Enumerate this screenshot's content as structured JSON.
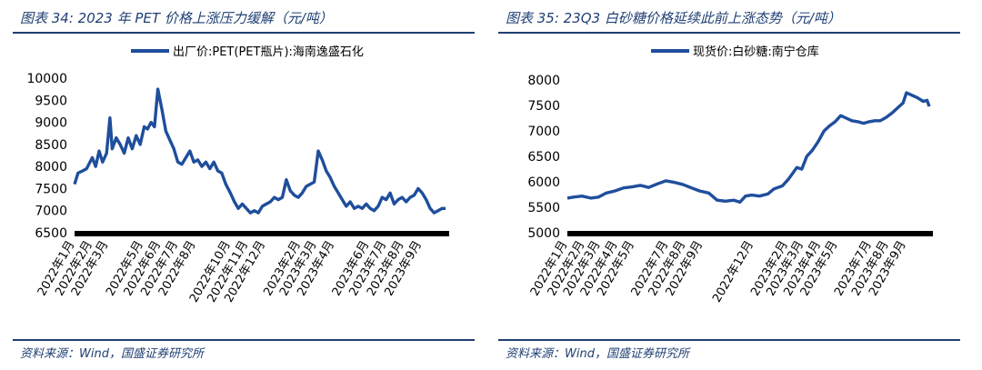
{
  "panels": [
    {
      "title": "图表 34:  2023 年 PET 价格上涨压力缓解（元/吨）",
      "source": "资料来源：Wind，国盛证券研究所",
      "chart_data": {
        "type": "line",
        "legend": "出厂价:PET(PET瓶片):海南逸盛石化",
        "legend_position": "top",
        "ylim": [
          6500,
          10000
        ],
        "yticks": [
          6500,
          7000,
          7500,
          8000,
          8500,
          9000,
          9500,
          10000
        ],
        "x_start": "2022-01-04",
        "x_end": "2023-10-16",
        "xticks": [
          {
            "date": "2022-01-04",
            "label": "2022年1月"
          },
          {
            "date": "2022-02-04",
            "label": "2022年2月"
          },
          {
            "date": "2022-03-04",
            "label": "2022年3月"
          },
          {
            "date": "2022-05-04",
            "label": "2022年5月"
          },
          {
            "date": "2022-06-04",
            "label": "2022年6月"
          },
          {
            "date": "2022-07-04",
            "label": "2022年7月"
          },
          {
            "date": "2022-08-04",
            "label": "2022年8月"
          },
          {
            "date": "2022-10-04",
            "label": "2022年10月"
          },
          {
            "date": "2022-11-04",
            "label": "2022年11月"
          },
          {
            "date": "2022-12-04",
            "label": "2022年12月"
          },
          {
            "date": "2023-02-04",
            "label": "2023年2月"
          },
          {
            "date": "2023-03-04",
            "label": "2023年3月"
          },
          {
            "date": "2023-04-04",
            "label": "2023年4月"
          },
          {
            "date": "2023-06-04",
            "label": "2023年6月"
          },
          {
            "date": "2023-07-04",
            "label": "2023年7月"
          },
          {
            "date": "2023-08-04",
            "label": "2023年8月"
          },
          {
            "date": "2023-09-04",
            "label": "2023年9月"
          }
        ],
        "series": [
          {
            "name": "出厂价:PET(PET瓶片):海南逸盛石化",
            "color": "#1f4e9c",
            "points": [
              [
                "2022-01-04",
                7600
              ],
              [
                "2022-01-10",
                7850
              ],
              [
                "2022-01-18",
                7900
              ],
              [
                "2022-01-25",
                7950
              ],
              [
                "2022-02-04",
                8200
              ],
              [
                "2022-02-10",
                8000
              ],
              [
                "2022-02-16",
                8350
              ],
              [
                "2022-02-22",
                8100
              ],
              [
                "2022-03-01",
                8300
              ],
              [
                "2022-03-07",
                9100
              ],
              [
                "2022-03-11",
                8400
              ],
              [
                "2022-03-18",
                8650
              ],
              [
                "2022-03-25",
                8500
              ],
              [
                "2022-04-01",
                8300
              ],
              [
                "2022-04-08",
                8650
              ],
              [
                "2022-04-15",
                8400
              ],
              [
                "2022-04-22",
                8700
              ],
              [
                "2022-04-29",
                8500
              ],
              [
                "2022-05-06",
                8900
              ],
              [
                "2022-05-12",
                8850
              ],
              [
                "2022-05-18",
                9000
              ],
              [
                "2022-05-24",
                8900
              ],
              [
                "2022-05-30",
                9750
              ],
              [
                "2022-06-06",
                9300
              ],
              [
                "2022-06-13",
                8800
              ],
              [
                "2022-06-20",
                8600
              ],
              [
                "2022-06-27",
                8400
              ],
              [
                "2022-07-04",
                8100
              ],
              [
                "2022-07-11",
                8050
              ],
              [
                "2022-07-18",
                8200
              ],
              [
                "2022-07-25",
                8350
              ],
              [
                "2022-08-01",
                8100
              ],
              [
                "2022-08-08",
                8150
              ],
              [
                "2022-08-15",
                8000
              ],
              [
                "2022-08-22",
                8100
              ],
              [
                "2022-08-29",
                7950
              ],
              [
                "2022-09-05",
                8100
              ],
              [
                "2022-09-12",
                7900
              ],
              [
                "2022-09-19",
                7850
              ],
              [
                "2022-09-26",
                7600
              ],
              [
                "2022-10-04",
                7400
              ],
              [
                "2022-10-11",
                7200
              ],
              [
                "2022-10-18",
                7050
              ],
              [
                "2022-10-25",
                7150
              ],
              [
                "2022-11-01",
                7050
              ],
              [
                "2022-11-08",
                6950
              ],
              [
                "2022-11-15",
                7000
              ],
              [
                "2022-11-22",
                6950
              ],
              [
                "2022-11-29",
                7100
              ],
              [
                "2022-12-06",
                7150
              ],
              [
                "2022-12-13",
                7200
              ],
              [
                "2022-12-20",
                7300
              ],
              [
                "2022-12-27",
                7250
              ],
              [
                "2023-01-03",
                7300
              ],
              [
                "2023-01-10",
                7700
              ],
              [
                "2023-01-17",
                7450
              ],
              [
                "2023-01-24",
                7350
              ],
              [
                "2023-01-31",
                7300
              ],
              [
                "2023-02-07",
                7400
              ],
              [
                "2023-02-14",
                7550
              ],
              [
                "2023-02-21",
                7600
              ],
              [
                "2023-02-28",
                7650
              ],
              [
                "2023-03-07",
                8350
              ],
              [
                "2023-03-14",
                8150
              ],
              [
                "2023-03-21",
                7900
              ],
              [
                "2023-03-28",
                7750
              ],
              [
                "2023-04-04",
                7550
              ],
              [
                "2023-04-11",
                7400
              ],
              [
                "2023-04-18",
                7250
              ],
              [
                "2023-04-25",
                7100
              ],
              [
                "2023-05-02",
                7200
              ],
              [
                "2023-05-09",
                7050
              ],
              [
                "2023-05-16",
                7100
              ],
              [
                "2023-05-23",
                7050
              ],
              [
                "2023-05-30",
                7150
              ],
              [
                "2023-06-06",
                7050
              ],
              [
                "2023-06-13",
                7000
              ],
              [
                "2023-06-20",
                7100
              ],
              [
                "2023-06-27",
                7300
              ],
              [
                "2023-07-04",
                7250
              ],
              [
                "2023-07-11",
                7400
              ],
              [
                "2023-07-18",
                7150
              ],
              [
                "2023-07-25",
                7250
              ],
              [
                "2023-08-01",
                7300
              ],
              [
                "2023-08-08",
                7200
              ],
              [
                "2023-08-15",
                7300
              ],
              [
                "2023-08-22",
                7350
              ],
              [
                "2023-08-29",
                7500
              ],
              [
                "2023-09-05",
                7400
              ],
              [
                "2023-09-12",
                7250
              ],
              [
                "2023-09-19",
                7050
              ],
              [
                "2023-09-26",
                6950
              ],
              [
                "2023-10-03",
                7000
              ],
              [
                "2023-10-10",
                7050
              ],
              [
                "2023-10-16",
                7050
              ]
            ]
          }
        ]
      }
    },
    {
      "title": "图表 35:  23Q3 白砂糖价格延续此前上涨态势（元/吨）",
      "source": "资料来源：Wind，国盛证券研究所",
      "chart_data": {
        "type": "line",
        "legend": "现货价:白砂糖:南宁仓库",
        "legend_position": "top",
        "ylim": [
          5000,
          8000
        ],
        "yticks": [
          5000,
          5500,
          6000,
          6500,
          7000,
          7500,
          8000
        ],
        "x_start": "2022-01-04",
        "x_end": "2023-10-16",
        "xticks": [
          {
            "date": "2022-01-04",
            "label": "2022年1月"
          },
          {
            "date": "2022-02-04",
            "label": "2022年2月"
          },
          {
            "date": "2022-03-04",
            "label": "2022年3月"
          },
          {
            "date": "2022-04-04",
            "label": "2022年4月"
          },
          {
            "date": "2022-05-04",
            "label": "2022年5月"
          },
          {
            "date": "2022-07-04",
            "label": "2022年7月"
          },
          {
            "date": "2022-08-04",
            "label": "2022年8月"
          },
          {
            "date": "2022-09-04",
            "label": "2022年9月"
          },
          {
            "date": "2022-12-04",
            "label": "2022年12月"
          },
          {
            "date": "2023-02-04",
            "label": "2023年2月"
          },
          {
            "date": "2023-03-04",
            "label": "2023年3月"
          },
          {
            "date": "2023-04-04",
            "label": "2023年4月"
          },
          {
            "date": "2023-05-04",
            "label": "2023年5月"
          },
          {
            "date": "2023-07-04",
            "label": "2023年7月"
          },
          {
            "date": "2023-08-04",
            "label": "2023年8月"
          },
          {
            "date": "2023-09-04",
            "label": "2023年9月"
          }
        ],
        "series": [
          {
            "name": "现货价:白砂糖:南宁仓库",
            "color": "#1f4e9c",
            "points": [
              [
                "2022-01-04",
                5680
              ],
              [
                "2022-01-15",
                5700
              ],
              [
                "2022-01-30",
                5720
              ],
              [
                "2022-02-15",
                5680
              ],
              [
                "2022-03-01",
                5700
              ],
              [
                "2022-03-15",
                5780
              ],
              [
                "2022-03-30",
                5820
              ],
              [
                "2022-04-15",
                5880
              ],
              [
                "2022-04-30",
                5900
              ],
              [
                "2022-05-15",
                5930
              ],
              [
                "2022-05-30",
                5890
              ],
              [
                "2022-06-15",
                5960
              ],
              [
                "2022-06-30",
                6020
              ],
              [
                "2022-07-15",
                5990
              ],
              [
                "2022-07-30",
                5950
              ],
              [
                "2022-08-15",
                5880
              ],
              [
                "2022-08-30",
                5820
              ],
              [
                "2022-09-15",
                5780
              ],
              [
                "2022-09-30",
                5640
              ],
              [
                "2022-10-15",
                5620
              ],
              [
                "2022-10-30",
                5640
              ],
              [
                "2022-11-10",
                5600
              ],
              [
                "2022-11-20",
                5720
              ],
              [
                "2022-12-01",
                5740
              ],
              [
                "2022-12-15",
                5720
              ],
              [
                "2022-12-30",
                5760
              ],
              [
                "2023-01-10",
                5860
              ],
              [
                "2023-01-25",
                5920
              ],
              [
                "2023-02-05",
                6050
              ],
              [
                "2023-02-20",
                6280
              ],
              [
                "2023-03-01",
                6250
              ],
              [
                "2023-03-10",
                6500
              ],
              [
                "2023-03-20",
                6620
              ],
              [
                "2023-03-30",
                6780
              ],
              [
                "2023-04-10",
                7000
              ],
              [
                "2023-04-20",
                7100
              ],
              [
                "2023-04-30",
                7180
              ],
              [
                "2023-05-10",
                7300
              ],
              [
                "2023-05-20",
                7250
              ],
              [
                "2023-05-30",
                7200
              ],
              [
                "2023-06-10",
                7180
              ],
              [
                "2023-06-20",
                7150
              ],
              [
                "2023-06-30",
                7180
              ],
              [
                "2023-07-10",
                7200
              ],
              [
                "2023-07-20",
                7200
              ],
              [
                "2023-07-30",
                7260
              ],
              [
                "2023-08-10",
                7350
              ],
              [
                "2023-08-20",
                7450
              ],
              [
                "2023-08-30",
                7550
              ],
              [
                "2023-09-05",
                7750
              ],
              [
                "2023-09-15",
                7700
              ],
              [
                "2023-09-25",
                7650
              ],
              [
                "2023-10-05",
                7580
              ],
              [
                "2023-10-12",
                7600
              ],
              [
                "2023-10-16",
                7480
              ]
            ]
          }
        ]
      }
    }
  ]
}
